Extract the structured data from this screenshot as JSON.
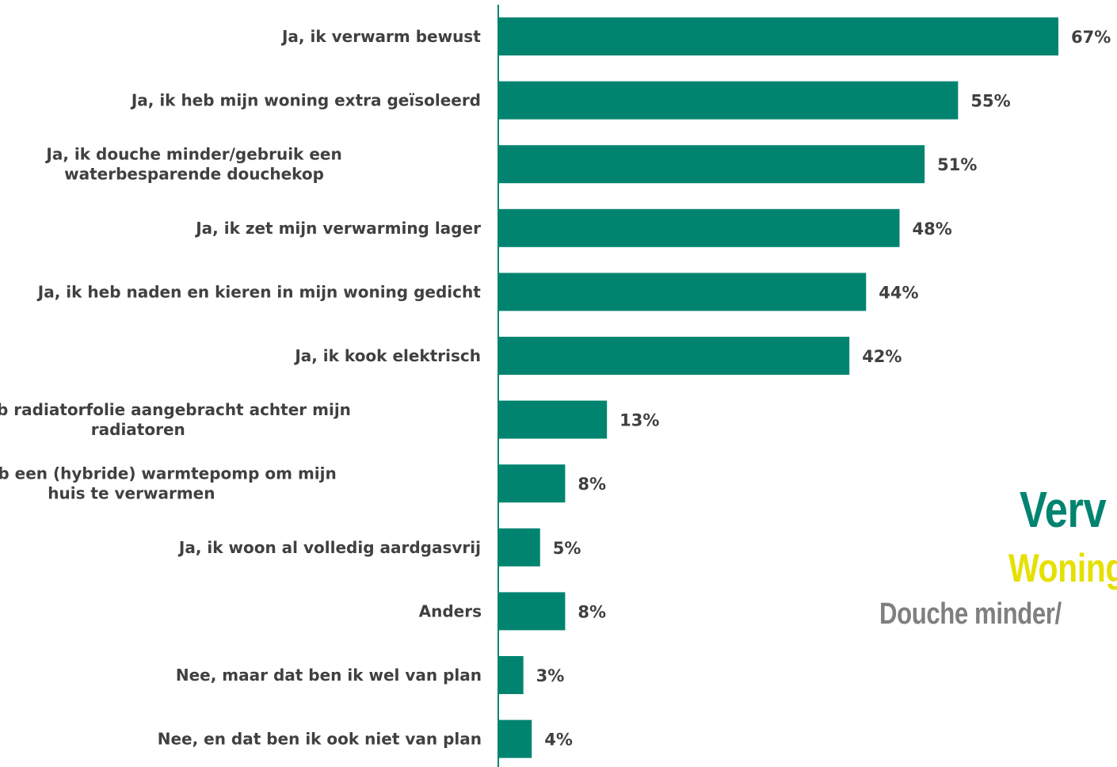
{
  "colors": {
    "bar": "#008470",
    "axis": "#008470",
    "text": "#404040",
    "overlay_primary": "#008470",
    "overlay_secondary": "#e6e000",
    "overlay_tertiary": "#7f7f7f"
  },
  "overlay_texts": [
    "Verv",
    "Woning",
    "Douche minder/"
  ],
  "chart_data": {
    "type": "bar",
    "orientation": "horizontal",
    "categories": [
      [
        "Ja, ik verwarm bewust"
      ],
      [
        "Ja, ik heb mijn woning extra geïsoleerd"
      ],
      [
        "Ja, ik douche minder/gebruik een",
        "waterbesparende douchekop"
      ],
      [
        "Ja, ik zet mijn verwarming lager"
      ],
      [
        "Ja, ik heb naden en kieren in mijn woning gedicht"
      ],
      [
        "Ja, ik kook elektrisch"
      ],
      [
        "Ja, ik heb radiatorfolie aangebracht achter mijn",
        "radiatoren"
      ],
      [
        "Ja, ik heb een (hybride) warmtepomp om mijn",
        "huis te verwarmen"
      ],
      [
        "Ja, ik woon al volledig aardgasvrij"
      ],
      [
        "Anders"
      ],
      [
        "Nee, maar dat ben ik wel van plan"
      ],
      [
        "Nee, en dat ben ik ook niet van plan"
      ]
    ],
    "values": [
      67,
      55,
      51,
      48,
      44,
      42,
      13,
      8,
      5,
      8,
      3,
      4
    ],
    "value_labels": [
      "67%",
      "55%",
      "51%",
      "48%",
      "44%",
      "42%",
      "13%",
      "8%",
      "5%",
      "8%",
      "3%",
      "4%"
    ],
    "unit": "%",
    "xlim": [
      0,
      67
    ],
    "grid": false,
    "legend": "none"
  }
}
